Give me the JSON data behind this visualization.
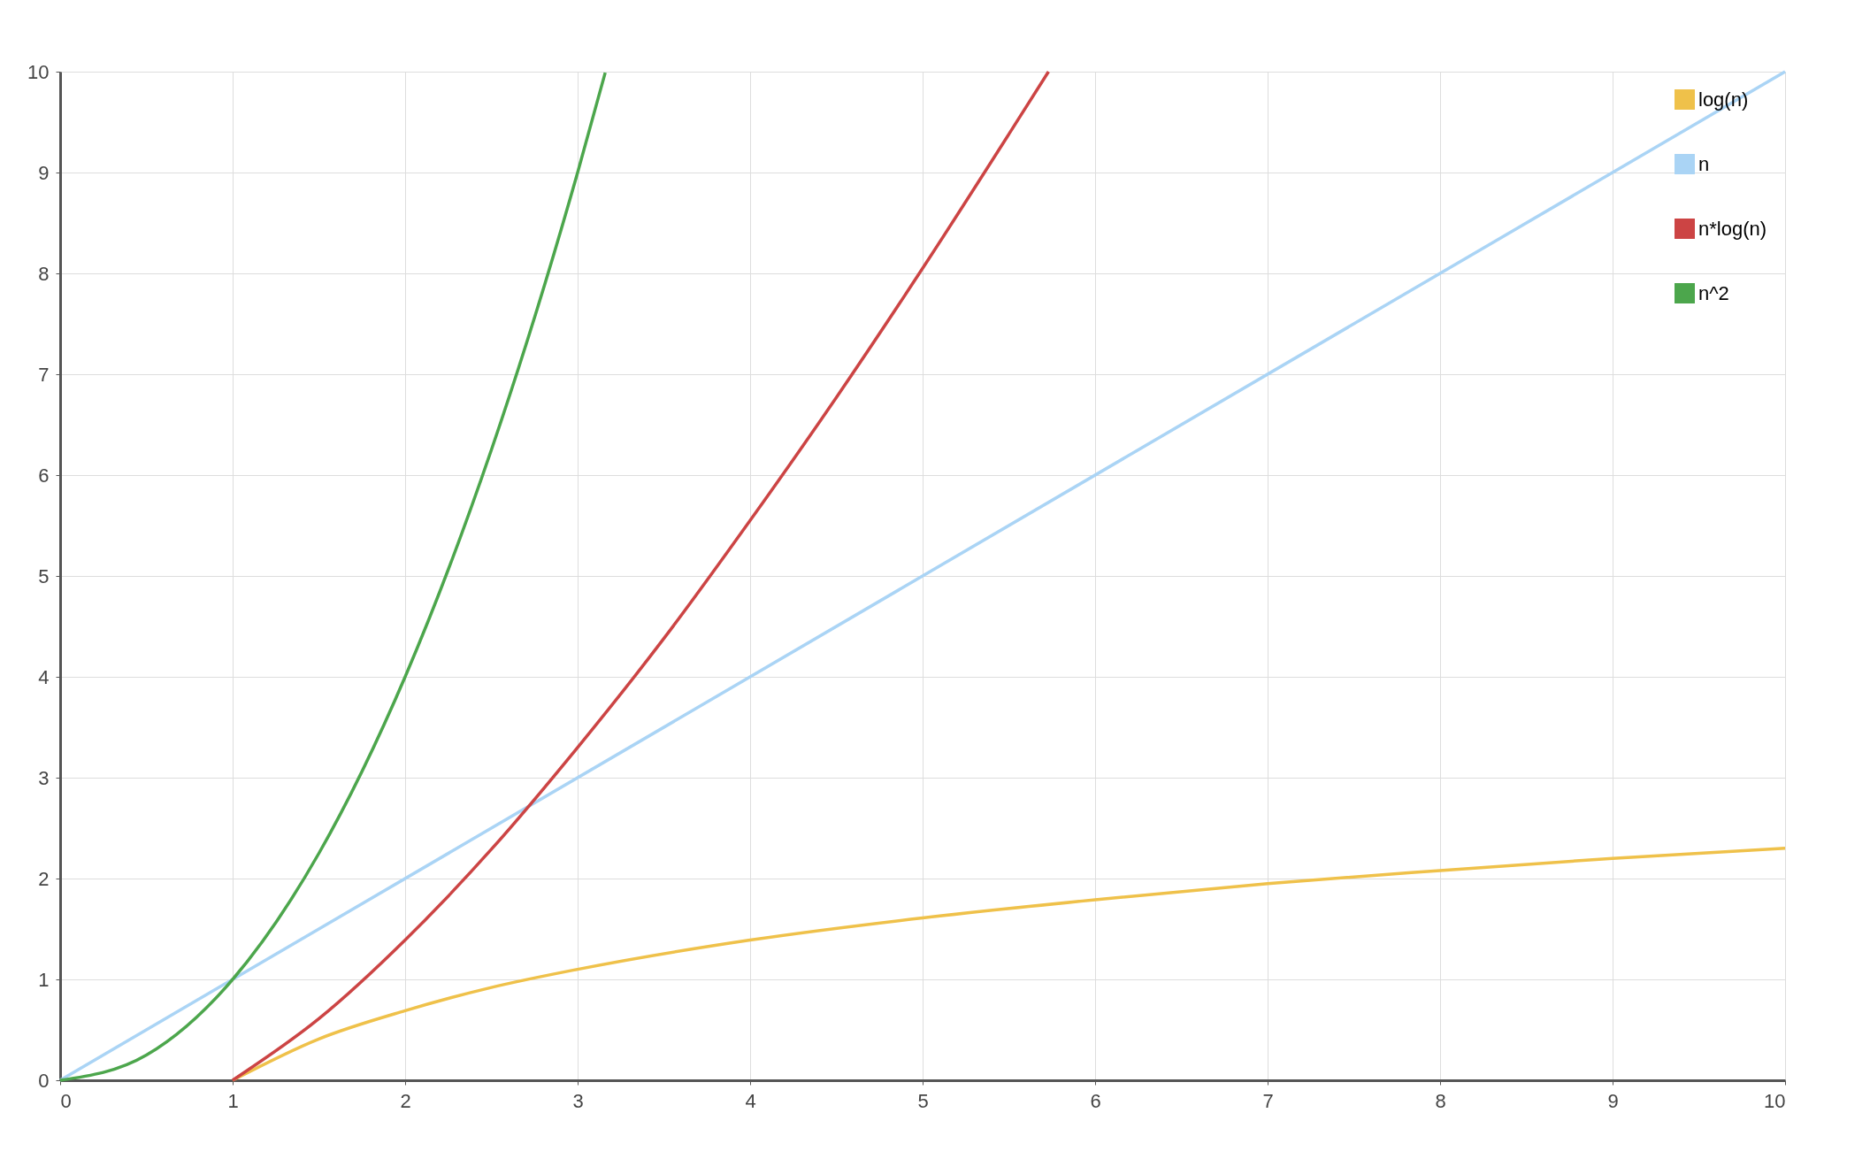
{
  "chart_data": {
    "type": "line",
    "xlim": [
      0,
      10
    ],
    "ylim": [
      0,
      10
    ],
    "xticks": [
      0,
      1,
      2,
      3,
      4,
      5,
      6,
      7,
      8,
      9,
      10
    ],
    "yticks": [
      0,
      1,
      2,
      3,
      4,
      5,
      6,
      7,
      8,
      9,
      10
    ],
    "grid": true,
    "legend": "top right",
    "marker": "none",
    "line_style": "solid",
    "series": [
      {
        "name": "log(n)",
        "color": "#efc14a",
        "x": [
          1,
          1.5,
          2,
          2.5,
          3,
          4,
          5,
          6,
          7,
          8,
          9,
          10
        ],
        "values": [
          0,
          0.41,
          0.69,
          0.92,
          1.1,
          1.39,
          1.61,
          1.79,
          1.95,
          2.08,
          2.2,
          2.3
        ]
      },
      {
        "name": "n",
        "color": "#aad4f5",
        "x": [
          0,
          10
        ],
        "values": [
          0,
          10
        ]
      },
      {
        "name": "n*log(n)",
        "color": "#cc4444",
        "x": [
          1,
          1.5,
          2,
          2.5,
          3,
          3.5,
          4,
          4.5,
          5,
          5.5,
          5.73
        ],
        "values": [
          0,
          0.61,
          1.39,
          2.29,
          3.3,
          4.38,
          5.55,
          6.77,
          8.05,
          9.38,
          10
        ]
      },
      {
        "name": "n^2",
        "color": "#4ca64c",
        "x": [
          0,
          0.5,
          1,
          1.5,
          2,
          2.5,
          3,
          3.16
        ],
        "values": [
          0,
          0.25,
          1,
          2.25,
          4,
          6.25,
          9,
          9.99
        ]
      }
    ]
  }
}
